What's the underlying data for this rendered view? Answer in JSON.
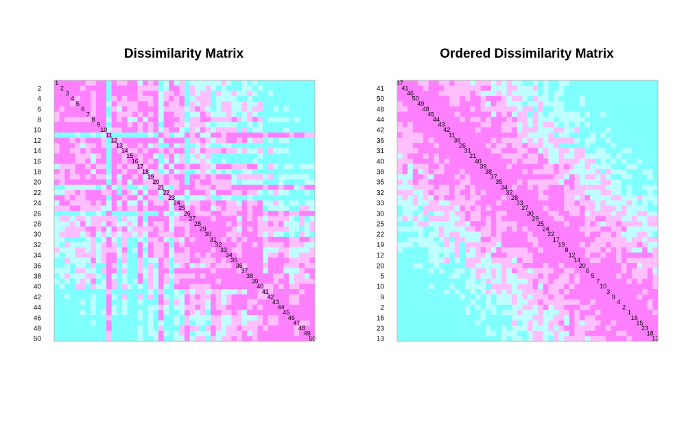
{
  "colors": {
    "background": "#ffffff",
    "low": "#ff80ff",
    "mid_low": "#ffbfff",
    "mid_high": "#bfffff",
    "high": "#80ffff",
    "frame": "#b3b3b3"
  },
  "chart_data": [
    {
      "type": "heatmap",
      "title": "Dissimilarity Matrix",
      "xlabel": "",
      "ylabel": "",
      "order": [
        1,
        2,
        3,
        4,
        5,
        6,
        7,
        8,
        9,
        10,
        11,
        12,
        13,
        14,
        15,
        16,
        17,
        18,
        19,
        20,
        21,
        22,
        23,
        24,
        25,
        26,
        27,
        28,
        29,
        30,
        31,
        32,
        33,
        34,
        35,
        36,
        37,
        38,
        39,
        40,
        41,
        42,
        43,
        44,
        45,
        46,
        47,
        48,
        49,
        50
      ],
      "row_tick_labels": [
        "2",
        "4",
        "6",
        "8",
        "10",
        "12",
        "14",
        "16",
        "18",
        "20",
        "22",
        "24",
        "26",
        "28",
        "30",
        "32",
        "34",
        "36",
        "38",
        "40",
        "42",
        "44",
        "46",
        "48",
        "50"
      ],
      "color_levels": 4,
      "legend": "none",
      "grid": false
    },
    {
      "type": "heatmap",
      "title": "Ordered Dissimilarity Matrix",
      "xlabel": "",
      "ylabel": "",
      "order": [
        47,
        41,
        46,
        50,
        49,
        48,
        45,
        44,
        43,
        42,
        11,
        36,
        26,
        31,
        21,
        40,
        39,
        38,
        37,
        35,
        34,
        32,
        28,
        33,
        27,
        30,
        29,
        25,
        24,
        22,
        17,
        19,
        8,
        12,
        14,
        20,
        6,
        5,
        7,
        10,
        3,
        9,
        4,
        2,
        1,
        16,
        15,
        23,
        18,
        13
      ],
      "row_tick_labels": [
        "41",
        "50",
        "48",
        "44",
        "42",
        "36",
        "31",
        "40",
        "38",
        "35",
        "32",
        "33",
        "30",
        "25",
        "22",
        "19",
        "12",
        "20",
        "5",
        "10",
        "9",
        "2",
        "16",
        "23",
        "13"
      ],
      "color_levels": 4,
      "legend": "none",
      "grid": false
    }
  ]
}
